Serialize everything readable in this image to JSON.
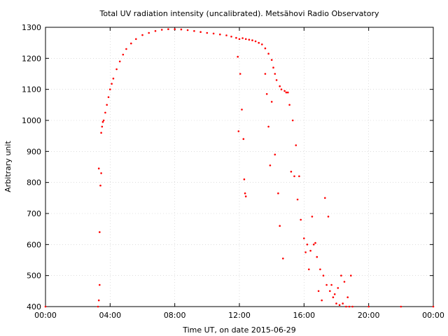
{
  "chart_data": {
    "type": "scatter",
    "title": "Total UV radiation intensity (uncalibrated). Metsähovi Radio Observatory",
    "xlabel": "Time UT, on date 2015-06-29",
    "ylabel": "Arbitrary unit",
    "xlim": [
      0,
      24
    ],
    "ylim": [
      400,
      1300
    ],
    "grid": true,
    "color": "#ff0000",
    "x_tick_values": [
      0,
      4,
      8,
      12,
      16,
      20,
      24
    ],
    "x_tick_labels": [
      "00:00",
      "04:00",
      "08:00",
      "12:00",
      "16:00",
      "20:00",
      "00:00"
    ],
    "y_ticks": [
      400,
      500,
      600,
      700,
      800,
      900,
      1000,
      1100,
      1200,
      1300
    ],
    "series": [
      {
        "x": [
          0.0,
          3.25,
          3.3,
          3.35,
          3.4,
          3.45,
          3.5,
          3.55,
          3.6,
          3.7,
          3.8,
          3.9,
          4.0,
          4.1,
          4.2,
          4.4,
          4.6,
          4.8,
          5.0,
          5.3,
          5.6,
          6.0,
          6.4,
          6.8,
          7.2,
          7.6,
          8.0,
          8.4,
          8.8,
          9.2,
          9.6,
          10.0,
          10.4,
          10.8,
          11.2,
          11.5,
          11.8,
          12.0,
          12.2,
          12.4,
          12.6,
          12.8,
          13.0,
          13.2,
          13.4,
          13.6,
          13.8,
          14.0,
          14.1,
          14.2,
          14.3,
          14.5,
          14.6,
          14.8,
          14.9,
          15.0,
          15.1,
          15.3,
          15.5,
          15.7,
          16.0,
          16.2,
          16.4,
          16.6,
          16.8,
          17.0,
          17.2,
          17.4,
          17.6,
          17.8,
          18.0,
          18.2,
          18.4,
          18.6,
          18.8,
          19.0,
          20.0,
          22.0,
          24.0
        ],
        "y": [
          400,
          400,
          420,
          470,
          790,
          960,
          980,
          995,
          1000,
          1025,
          1050,
          1075,
          1100,
          1118,
          1135,
          1165,
          1190,
          1212,
          1230,
          1248,
          1262,
          1275,
          1282,
          1288,
          1292,
          1294,
          1294,
          1293,
          1291,
          1288,
          1285,
          1282,
          1280,
          1277,
          1274,
          1270,
          1266,
          1262,
          1265,
          1262,
          1260,
          1258,
          1255,
          1250,
          1245,
          1232,
          1215,
          1195,
          1170,
          1150,
          1130,
          1110,
          1100,
          1095,
          1090,
          1090,
          1050,
          1000,
          920,
          820,
          620,
          600,
          580,
          600,
          560,
          520,
          500,
          470,
          450,
          430,
          410,
          405,
          410,
          400,
          400,
          400,
          400,
          400,
          400
        ]
      },
      {
        "x": [
          3.3,
          3.35,
          3.45,
          11.9,
          11.95,
          12.05,
          12.15,
          12.25,
          12.3,
          12.35,
          12.4,
          13.6,
          13.7,
          13.8,
          13.9,
          14.0,
          14.2,
          14.4,
          14.5,
          14.7,
          15.2,
          15.4,
          15.6,
          15.8,
          16.1,
          16.3,
          16.5,
          16.7,
          16.9,
          17.1,
          17.3,
          17.5,
          17.7,
          17.9,
          18.1,
          18.3,
          18.5,
          18.7,
          18.9
        ],
        "y": [
          845,
          640,
          830,
          1205,
          965,
          1150,
          1035,
          940,
          810,
          765,
          755,
          1150,
          1085,
          980,
          855,
          1060,
          890,
          765,
          660,
          555,
          835,
          820,
          745,
          680,
          575,
          520,
          690,
          605,
          450,
          420,
          750,
          690,
          470,
          440,
          460,
          500,
          480,
          430,
          500
        ]
      }
    ]
  }
}
